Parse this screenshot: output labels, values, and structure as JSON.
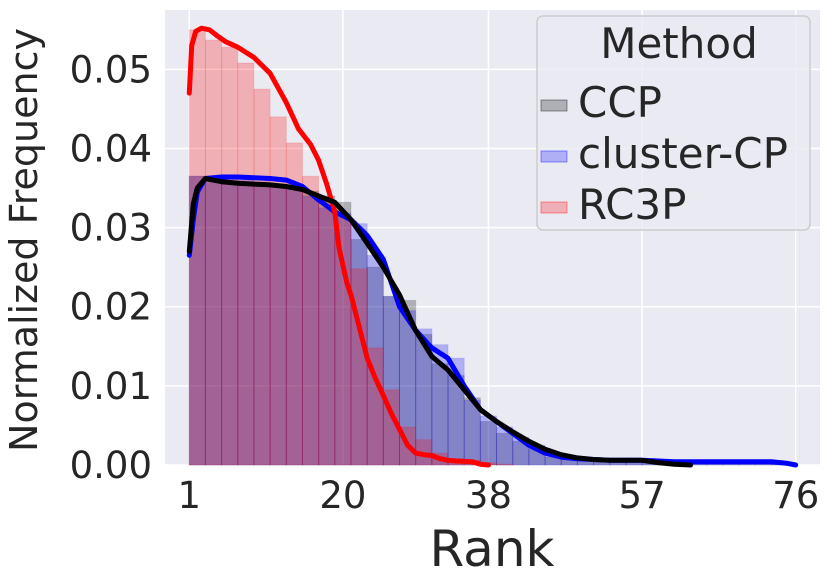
{
  "chart_data": {
    "type": "histogram+kde",
    "xlabel": "Rank",
    "ylabel": "Normalized Frequency",
    "xlim": [
      -2,
      79
    ],
    "ylim": [
      0,
      0.0575
    ],
    "xticks": [
      1,
      20,
      38,
      57,
      76
    ],
    "yticks": [
      0.0,
      0.01,
      0.02,
      0.03,
      0.04,
      0.05
    ],
    "ytick_labels": [
      "0.00",
      "0.01",
      "0.02",
      "0.03",
      "0.04",
      "0.05"
    ],
    "grid": true,
    "legend": {
      "title": "Method",
      "position": "top-right"
    },
    "bin_edges": [
      1,
      3,
      5,
      7,
      9,
      11,
      13,
      15,
      17,
      19,
      21,
      23,
      25,
      27,
      29,
      31,
      33,
      35,
      37,
      39,
      41,
      43,
      45,
      47,
      49,
      51,
      53,
      55,
      57,
      59,
      61,
      63,
      65,
      67,
      69,
      71,
      73,
      75,
      76
    ],
    "series": [
      {
        "name": "CCP",
        "color": "#000000",
        "hist": [
          0.0365,
          0.0362,
          0.0357,
          0.0355,
          0.0355,
          0.0353,
          0.035,
          0.0346,
          0.034,
          0.0332,
          0.0285,
          0.025,
          0.0213,
          0.0208,
          0.0165,
          0.0128,
          0.0113,
          0.0085,
          0.0055,
          0.004,
          0.003,
          0.002,
          0.001,
          0.0007,
          0.0006,
          0.0005,
          0.0005,
          0.0004,
          0.0003,
          0.0002,
          0.0001,
          0.0001,
          0.0001,
          0.0001,
          0.0001,
          0.0001,
          0.0001,
          0.0001
        ],
        "kde": [
          [
            1,
            0.027
          ],
          [
            1.5,
            0.033
          ],
          [
            2,
            0.035
          ],
          [
            3,
            0.0362
          ],
          [
            5,
            0.0358
          ],
          [
            7,
            0.0356
          ],
          [
            9,
            0.0355
          ],
          [
            11,
            0.0354
          ],
          [
            13,
            0.0352
          ],
          [
            15,
            0.0348
          ],
          [
            17,
            0.034
          ],
          [
            19,
            0.0332
          ],
          [
            21,
            0.031
          ],
          [
            23,
            0.028
          ],
          [
            25,
            0.025
          ],
          [
            27,
            0.0215
          ],
          [
            29,
            0.017
          ],
          [
            31,
            0.0137
          ],
          [
            33,
            0.012
          ],
          [
            35,
            0.0095
          ],
          [
            37,
            0.007
          ],
          [
            39,
            0.0055
          ],
          [
            41,
            0.0042
          ],
          [
            43,
            0.003
          ],
          [
            45,
            0.002
          ],
          [
            47,
            0.0013
          ],
          [
            49,
            0.0009
          ],
          [
            51,
            0.0007
          ],
          [
            53,
            0.0006
          ],
          [
            55,
            0.0006
          ],
          [
            57,
            0.0006
          ],
          [
            59,
            0.0003
          ],
          [
            61,
            0.0001
          ],
          [
            63,
            0.0
          ]
        ]
      },
      {
        "name": "cluster-CP",
        "color": "#0000ff",
        "hist": [
          0.0365,
          0.0365,
          0.0362,
          0.036,
          0.0358,
          0.0355,
          0.035,
          0.034,
          0.0325,
          0.0318,
          0.0305,
          0.0265,
          0.0213,
          0.0195,
          0.0172,
          0.0152,
          0.0135,
          0.0082,
          0.0062,
          0.0048,
          0.0035,
          0.0025,
          0.0012,
          0.001,
          0.0008,
          0.0008,
          0.0007,
          0.0006,
          0.0005,
          0.0004,
          0.0004,
          0.0004,
          0.0004,
          0.0004,
          0.0004,
          0.0004,
          0.0003,
          0.0002
        ],
        "kde": [
          [
            1,
            0.0265
          ],
          [
            1.5,
            0.031
          ],
          [
            2,
            0.0345
          ],
          [
            3,
            0.0362
          ],
          [
            5,
            0.0364
          ],
          [
            7,
            0.0364
          ],
          [
            9,
            0.0363
          ],
          [
            11,
            0.0362
          ],
          [
            13,
            0.036
          ],
          [
            15,
            0.0352
          ],
          [
            17,
            0.0335
          ],
          [
            19,
            0.032
          ],
          [
            21,
            0.031
          ],
          [
            23,
            0.029
          ],
          [
            25,
            0.026
          ],
          [
            27,
            0.02
          ],
          [
            29,
            0.017
          ],
          [
            31,
            0.0148
          ],
          [
            33,
            0.0135
          ],
          [
            35,
            0.01
          ],
          [
            37,
            0.007
          ],
          [
            39,
            0.0055
          ],
          [
            41,
            0.004
          ],
          [
            43,
            0.0025
          ],
          [
            45,
            0.0015
          ],
          [
            47,
            0.001
          ],
          [
            49,
            0.0008
          ],
          [
            51,
            0.0007
          ],
          [
            53,
            0.0006
          ],
          [
            55,
            0.0006
          ],
          [
            57,
            0.0006
          ],
          [
            59,
            0.0005
          ],
          [
            61,
            0.0004
          ],
          [
            63,
            0.0004
          ],
          [
            65,
            0.0004
          ],
          [
            67,
            0.0004
          ],
          [
            69,
            0.0004
          ],
          [
            71,
            0.0004
          ],
          [
            73,
            0.0004
          ],
          [
            75,
            0.0002
          ],
          [
            76,
            0.0
          ]
        ]
      },
      {
        "name": "RC3P",
        "color": "#ff0000",
        "hist": [
          0.055,
          0.0537,
          0.0528,
          0.0508,
          0.0475,
          0.044,
          0.0407,
          0.0365,
          0.0335,
          0.0315,
          0.0248,
          0.0148,
          0.0095,
          0.0048,
          0.0032,
          0.0015,
          0.0008,
          0.0006,
          0.0003,
          0.0001,
          0,
          0,
          0,
          0,
          0,
          0,
          0,
          0,
          0,
          0,
          0,
          0,
          0,
          0,
          0,
          0,
          0,
          0
        ],
        "kde": [
          [
            1,
            0.047
          ],
          [
            1.3,
            0.053
          ],
          [
            1.8,
            0.0548
          ],
          [
            2.5,
            0.0552
          ],
          [
            3.5,
            0.055
          ],
          [
            4.5,
            0.0542
          ],
          [
            5.5,
            0.0535
          ],
          [
            7,
            0.0528
          ],
          [
            9,
            0.0515
          ],
          [
            11,
            0.0495
          ],
          [
            13,
            0.0458
          ],
          [
            14.5,
            0.0425
          ],
          [
            16,
            0.0405
          ],
          [
            17,
            0.0385
          ],
          [
            18,
            0.0355
          ],
          [
            19,
            0.032
          ],
          [
            19.5,
            0.0275
          ],
          [
            20.5,
            0.023
          ],
          [
            21,
            0.0215
          ],
          [
            22,
            0.0175
          ],
          [
            23,
            0.0135
          ],
          [
            24,
            0.011
          ],
          [
            25,
            0.0088
          ],
          [
            26,
            0.0065
          ],
          [
            27,
            0.0045
          ],
          [
            28,
            0.0025
          ],
          [
            29,
            0.0015
          ],
          [
            30,
            0.0013
          ],
          [
            31,
            0.0012
          ],
          [
            32,
            0.0008
          ],
          [
            33,
            0.0006
          ],
          [
            34,
            0.0005
          ],
          [
            36,
            0.0004
          ],
          [
            37,
            0.0001
          ],
          [
            38,
            0.0
          ]
        ]
      }
    ]
  }
}
